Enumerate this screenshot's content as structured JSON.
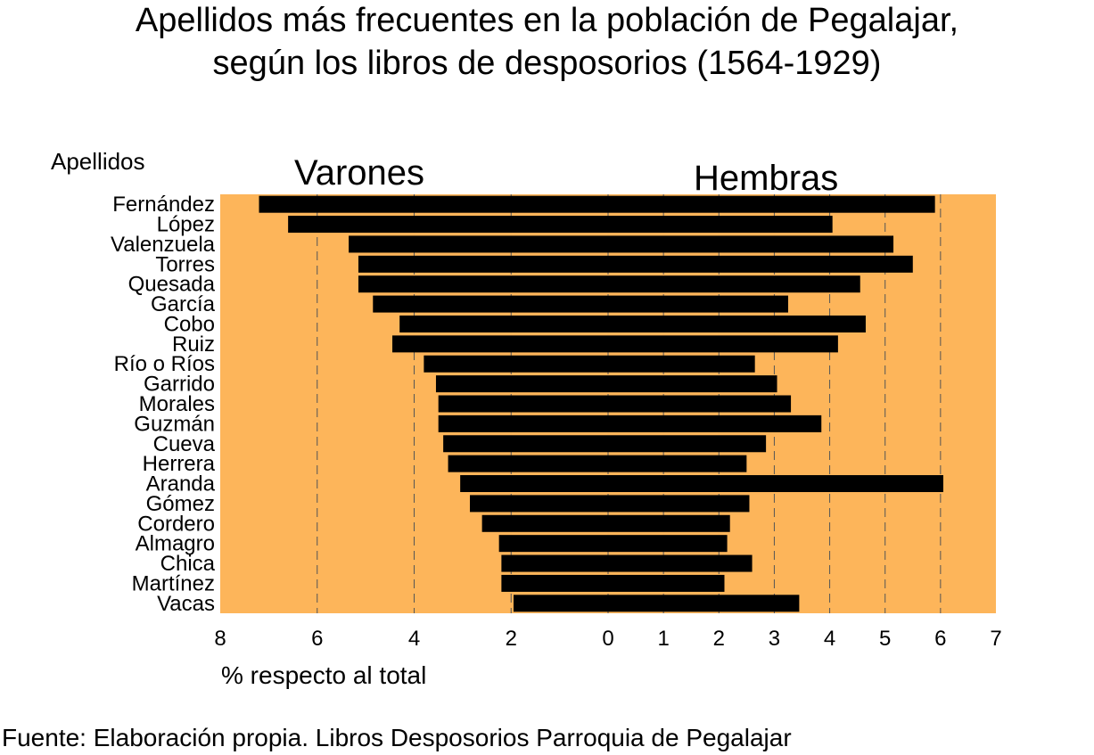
{
  "title_line1": "Apellidos más frecuentes en la población de Pegalajar,",
  "title_line2": "según los libros de desposorios (1564-1929)",
  "ylabel": "Apellidos",
  "xlabel": "% respecto al total",
  "source": "Fuente: Elaboración propia. Libros Desposorios Parroquia de Pegalajar",
  "colors": {
    "background": "#FDB55A",
    "bar": "#000000",
    "grid": "#555555"
  },
  "chart_data": {
    "type": "bar",
    "orientation": "horizontal",
    "layout": "population-pyramid",
    "categories": [
      "Fernández",
      "López",
      "Valenzuela",
      "Torres",
      "Quesada",
      "García",
      "Cobo",
      "Ruiz",
      "Río o Ríos",
      "Garrido",
      "Morales",
      "Guzmán",
      "Cueva",
      "Herrera",
      "Aranda",
      "Gómez",
      "Cordero",
      "Almagro",
      "Chica",
      "Martínez",
      "Vacas"
    ],
    "series": [
      {
        "name": "Varones",
        "values": [
          7.2,
          6.6,
          5.35,
          5.15,
          5.15,
          4.85,
          4.3,
          4.45,
          3.8,
          3.55,
          3.5,
          3.5,
          3.4,
          3.3,
          3.05,
          2.85,
          2.6,
          2.25,
          2.2,
          2.2,
          1.95
        ]
      },
      {
        "name": "Hembras",
        "values": [
          5.9,
          4.05,
          5.15,
          5.5,
          4.55,
          3.25,
          4.65,
          4.15,
          2.65,
          3.05,
          3.3,
          3.85,
          2.85,
          2.5,
          6.05,
          2.55,
          2.2,
          2.15,
          2.6,
          2.1,
          3.45
        ]
      }
    ],
    "left_axis": {
      "label": "Varones",
      "range": [
        0,
        8
      ],
      "ticks": [
        8,
        6,
        4,
        2,
        0
      ]
    },
    "right_axis": {
      "label": "Hembras",
      "range": [
        0,
        7
      ],
      "ticks": [
        0,
        1,
        2,
        3,
        4,
        5,
        6,
        7
      ]
    },
    "grid": "vertical dashed"
  }
}
